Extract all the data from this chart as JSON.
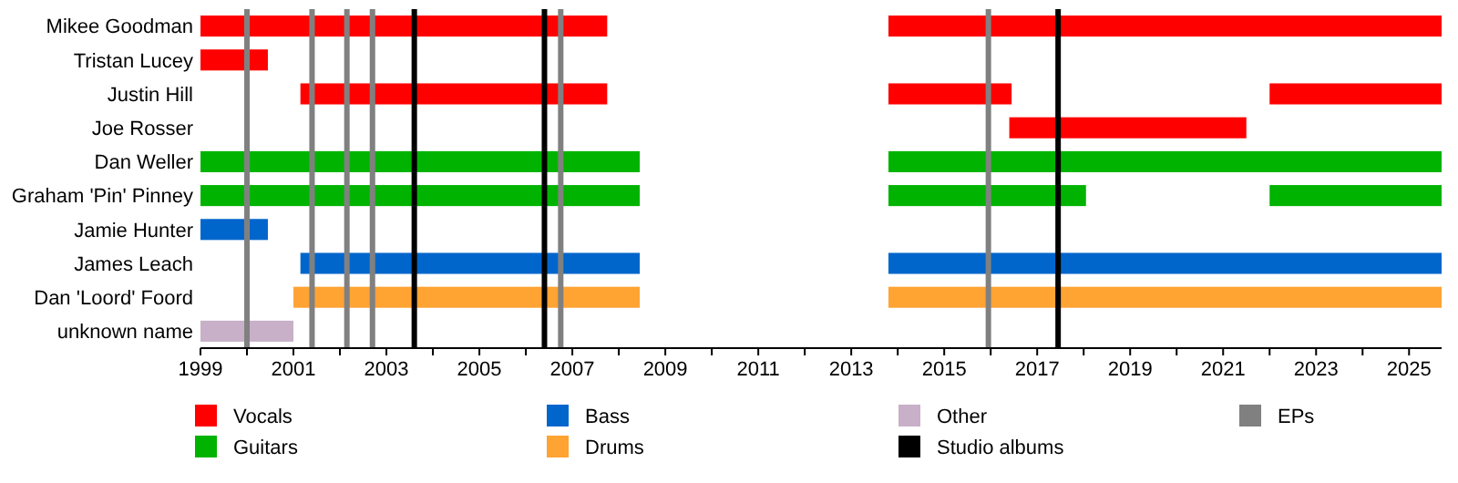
{
  "chart_data": {
    "type": "bar",
    "orientation": "horizontal",
    "categories": [
      "Mikee Goodman",
      "Tristan Lucey",
      "Justin Hill",
      "Joe Rosser",
      "Dan Weller",
      "Graham 'Pin' Pinney",
      "Jamie Hunter",
      "James Leach",
      "Dan 'Loord' Foord",
      "unknown name"
    ],
    "series": [
      {
        "name": "Vocals",
        "color": "#ff0000",
        "values": [
          8.75,
          1.45,
          6.6,
          5.1,
          null,
          null,
          null,
          null,
          null,
          null
        ],
        "base": [
          1999,
          1999,
          2001.15,
          2016.4,
          null,
          null,
          null,
          null,
          null,
          null
        ]
      },
      {
        "color": "#ff0000",
        "values": [
          11.9,
          null,
          2.65,
          null,
          null,
          null,
          null,
          null,
          null,
          null
        ],
        "base": [
          2013.8,
          null,
          2013.8,
          null,
          null,
          null,
          null,
          null,
          null,
          null
        ]
      },
      {
        "color": "#ff0000",
        "values": [
          null,
          null,
          3.7,
          null,
          null,
          null,
          null,
          null,
          null,
          null
        ],
        "base": [
          null,
          null,
          2022.0,
          null,
          null,
          null,
          null,
          null,
          null,
          null
        ]
      },
      {
        "name": "Guitars",
        "color": "#00b300",
        "values": [
          null,
          null,
          null,
          null,
          9.45,
          9.45,
          null,
          null,
          null,
          null
        ],
        "base": [
          null,
          null,
          null,
          null,
          1999,
          1999,
          null,
          null,
          null,
          null
        ]
      },
      {
        "color": "#00b300",
        "values": [
          null,
          null,
          null,
          null,
          11.9,
          4.25,
          null,
          null,
          null,
          null
        ],
        "base": [
          null,
          null,
          null,
          null,
          2013.8,
          2013.8,
          null,
          null,
          null,
          null
        ]
      },
      {
        "color": "#00b300",
        "values": [
          null,
          null,
          null,
          null,
          null,
          3.7,
          null,
          null,
          null,
          null
        ],
        "base": [
          null,
          null,
          null,
          null,
          null,
          2022.0,
          null,
          null,
          null,
          null
        ]
      },
      {
        "name": "Bass",
        "color": "#0066cc",
        "values": [
          null,
          null,
          null,
          null,
          null,
          null,
          1.45,
          7.3,
          null,
          null
        ],
        "base": [
          null,
          null,
          null,
          null,
          null,
          null,
          1999,
          2001.15,
          null,
          null
        ]
      },
      {
        "color": "#0066cc",
        "values": [
          null,
          null,
          null,
          null,
          null,
          null,
          null,
          11.9,
          null,
          null
        ],
        "base": [
          null,
          null,
          null,
          null,
          null,
          null,
          null,
          2013.8,
          null,
          null
        ]
      },
      {
        "name": "Drums",
        "color": "#ffa333",
        "values": [
          null,
          null,
          null,
          null,
          null,
          null,
          null,
          null,
          7.45,
          null
        ],
        "base": [
          null,
          null,
          null,
          null,
          null,
          null,
          null,
          null,
          2001.0,
          null
        ]
      },
      {
        "color": "#ffa333",
        "values": [
          null,
          null,
          null,
          null,
          null,
          null,
          null,
          null,
          11.9,
          null
        ],
        "base": [
          null,
          null,
          null,
          null,
          null,
          null,
          null,
          null,
          2013.8,
          null
        ]
      },
      {
        "name": "Other",
        "color": "#c8b0c8",
        "values": [
          null,
          null,
          null,
          null,
          null,
          null,
          null,
          null,
          null,
          2.0
        ],
        "base": [
          null,
          null,
          null,
          null,
          null,
          null,
          null,
          null,
          null,
          1999
        ]
      }
    ],
    "ref_lines": [
      {
        "axis": "x",
        "value": 2003.6,
        "label": "Studio albums",
        "color": "#000000"
      },
      {
        "axis": "x",
        "value": 2006.4,
        "color": "#000000"
      },
      {
        "axis": "x",
        "value": 2017.45,
        "color": "#000000"
      },
      {
        "axis": "x",
        "value": 2000.0,
        "label": "EPs",
        "color": "#808080"
      },
      {
        "axis": "x",
        "value": 2001.4,
        "color": "#808080"
      },
      {
        "axis": "x",
        "value": 2002.15,
        "color": "#808080"
      },
      {
        "axis": "x",
        "value": 2002.7,
        "color": "#808080"
      },
      {
        "axis": "x",
        "value": 2006.75,
        "color": "#808080"
      },
      {
        "axis": "x",
        "value": 2015.95,
        "color": "#808080"
      }
    ],
    "xlim": [
      1999,
      2025.7
    ],
    "xticks": [
      1999,
      {
        "value": 2000,
        "label": null
      },
      2001,
      {
        "value": 2002,
        "label": null
      },
      2003,
      {
        "value": 2004,
        "label": null
      },
      2005,
      {
        "value": 2006,
        "label": null
      },
      2007,
      {
        "value": 2008,
        "label": null
      },
      2009,
      {
        "value": 2010,
        "label": null
      },
      2011,
      {
        "value": 2012,
        "label": null
      },
      2013,
      {
        "value": 2014,
        "label": null
      },
      2015,
      {
        "value": 2016,
        "label": null
      },
      2017,
      {
        "value": 2018,
        "label": null
      },
      2019,
      {
        "value": 2020,
        "label": null
      },
      2021,
      {
        "value": 2022,
        "label": null
      },
      2023,
      {
        "value": 2024,
        "label": null
      },
      2025
    ],
    "grid": false,
    "legend": "bottom"
  }
}
